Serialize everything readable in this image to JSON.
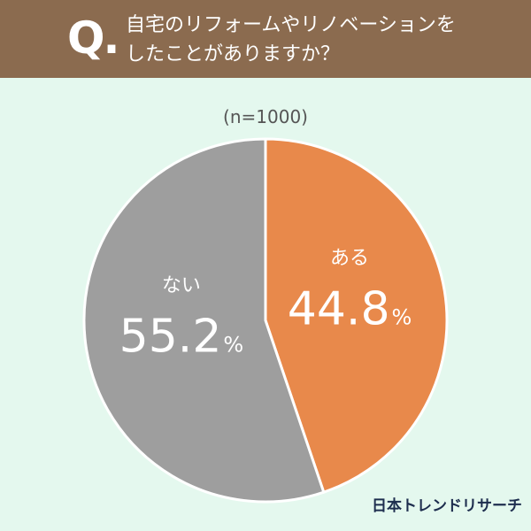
{
  "question": {
    "marker": "Q.",
    "lines": [
      "自宅のリフォームやリノベーションを",
      "したことがありますか？"
    ]
  },
  "colors": {
    "header_bg": "#8b6b4f",
    "page_bg": "#e4f8ee",
    "aru": "#e8894b",
    "nai": "#9e9e9e"
  },
  "chart_data": {
    "type": "pie",
    "subtitle": "(n=1000)",
    "slices": [
      {
        "label": "ある",
        "value": 44.8,
        "value_text": "44.8",
        "unit": "%",
        "color": "#e8894b"
      },
      {
        "label": "ない",
        "value": 55.2,
        "value_text": "55.2",
        "unit": "%",
        "color": "#9e9e9e"
      }
    ],
    "start": "12 o'clock",
    "direction": "clockwise"
  },
  "brand": "日本トレンドリサーチ"
}
